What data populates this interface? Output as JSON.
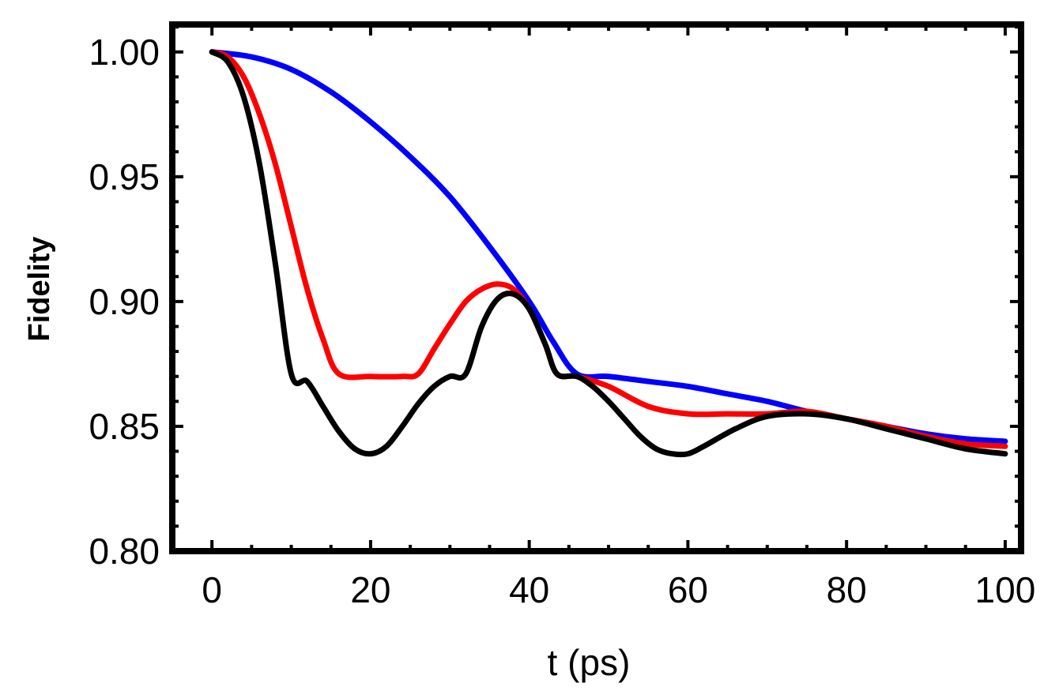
{
  "chart_data": {
    "type": "line",
    "title": "",
    "xlabel": "t (ps)",
    "ylabel": "Fidelity",
    "xlim": [
      -5,
      102
    ],
    "ylim": [
      0.8,
      1.011
    ],
    "grid": false,
    "x_ticks": [
      {
        "value": 0,
        "label": "0"
      },
      {
        "value": 20,
        "label": "20"
      },
      {
        "value": 40,
        "label": "40"
      },
      {
        "value": 60,
        "label": "60"
      },
      {
        "value": 80,
        "label": "80"
      },
      {
        "value": 100,
        "label": "100"
      }
    ],
    "y_ticks": [
      {
        "value": 0.8,
        "label": "0.80"
      },
      {
        "value": 0.85,
        "label": "0.85"
      },
      {
        "value": 0.9,
        "label": "0.90"
      },
      {
        "value": 0.95,
        "label": "0.95"
      },
      {
        "value": 1.0,
        "label": "1.00"
      }
    ],
    "x_minor_step": 5,
    "y_minor_step": 0.01,
    "series": [
      {
        "name": "blue",
        "color": "#0000ff",
        "points": [
          [
            0,
            1.0
          ],
          [
            5,
            0.998
          ],
          [
            10,
            0.993
          ],
          [
            15,
            0.984
          ],
          [
            20,
            0.972
          ],
          [
            25,
            0.958
          ],
          [
            30,
            0.942
          ],
          [
            35,
            0.922
          ],
          [
            40,
            0.9
          ],
          [
            43,
            0.884
          ],
          [
            46,
            0.871
          ],
          [
            50,
            0.87
          ],
          [
            55,
            0.868
          ],
          [
            60,
            0.866
          ],
          [
            65,
            0.863
          ],
          [
            70,
            0.86
          ],
          [
            75,
            0.856
          ],
          [
            80,
            0.853
          ],
          [
            85,
            0.85
          ],
          [
            90,
            0.847
          ],
          [
            95,
            0.845
          ],
          [
            100,
            0.844
          ]
        ]
      },
      {
        "name": "red",
        "color": "#ff0000",
        "points": [
          [
            0,
            1.0
          ],
          [
            2,
            0.998
          ],
          [
            4,
            0.99
          ],
          [
            6,
            0.975
          ],
          [
            8,
            0.955
          ],
          [
            10,
            0.93
          ],
          [
            12,
            0.905
          ],
          [
            14,
            0.885
          ],
          [
            16,
            0.871
          ],
          [
            20,
            0.87
          ],
          [
            24,
            0.87
          ],
          [
            26,
            0.871
          ],
          [
            28,
            0.881
          ],
          [
            30,
            0.891
          ],
          [
            32,
            0.9
          ],
          [
            34,
            0.905
          ],
          [
            36,
            0.907
          ],
          [
            38,
            0.905
          ],
          [
            40,
            0.897
          ],
          [
            42,
            0.883
          ],
          [
            43.5,
            0.871
          ],
          [
            46,
            0.87
          ],
          [
            50,
            0.866
          ],
          [
            55,
            0.858
          ],
          [
            60,
            0.855
          ],
          [
            65,
            0.855
          ],
          [
            70,
            0.855
          ],
          [
            75,
            0.856
          ],
          [
            80,
            0.853
          ],
          [
            85,
            0.85
          ],
          [
            90,
            0.846
          ],
          [
            95,
            0.843
          ],
          [
            100,
            0.842
          ]
        ]
      },
      {
        "name": "black",
        "color": "#000000",
        "points": [
          [
            0,
            1.0
          ],
          [
            2,
            0.996
          ],
          [
            4,
            0.982
          ],
          [
            6,
            0.955
          ],
          [
            8,
            0.915
          ],
          [
            10,
            0.871
          ],
          [
            12,
            0.868
          ],
          [
            14,
            0.858
          ],
          [
            16,
            0.848
          ],
          [
            18,
            0.841
          ],
          [
            20,
            0.839
          ],
          [
            22,
            0.842
          ],
          [
            24,
            0.85
          ],
          [
            26,
            0.859
          ],
          [
            28,
            0.866
          ],
          [
            30,
            0.87
          ],
          [
            32,
            0.871
          ],
          [
            34,
            0.89
          ],
          [
            36,
            0.901
          ],
          [
            38,
            0.903
          ],
          [
            40,
            0.897
          ],
          [
            42,
            0.883
          ],
          [
            43.5,
            0.871
          ],
          [
            46,
            0.87
          ],
          [
            48,
            0.866
          ],
          [
            50,
            0.86
          ],
          [
            52,
            0.853
          ],
          [
            54,
            0.846
          ],
          [
            56,
            0.841
          ],
          [
            58,
            0.839
          ],
          [
            60,
            0.839
          ],
          [
            62,
            0.842
          ],
          [
            66,
            0.849
          ],
          [
            70,
            0.854
          ],
          [
            75,
            0.855
          ],
          [
            80,
            0.853
          ],
          [
            85,
            0.849
          ],
          [
            90,
            0.845
          ],
          [
            95,
            0.841
          ],
          [
            100,
            0.839
          ]
        ]
      }
    ]
  }
}
